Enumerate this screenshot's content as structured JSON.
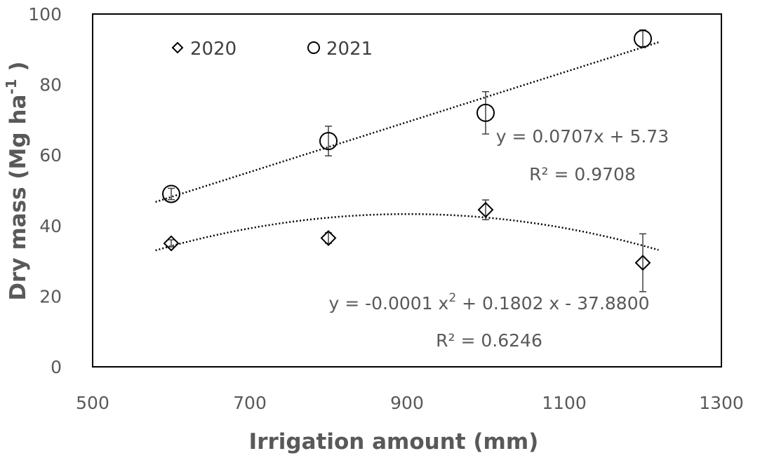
{
  "chart_data": {
    "type": "scatter",
    "xlabel": "Irrigation amount (mm)",
    "ylabel_main": "Dry mass (Mg ha",
    "ylabel_sup": "-1",
    "ylabel_end": " )",
    "xlim": [
      500,
      1300
    ],
    "ylim": [
      0,
      100
    ],
    "xticks": [
      "500",
      "700",
      "900",
      "1100",
      "1300"
    ],
    "yticks": [
      "0",
      "20",
      "40",
      "60",
      "80",
      "100"
    ],
    "grid": false,
    "legend_position": "top-left",
    "series": [
      {
        "name": "2020",
        "marker": "diamond",
        "color": "#000000",
        "x": [
          600,
          800,
          1000,
          1200
        ],
        "y": [
          35.0,
          36.5,
          44.5,
          29.5
        ],
        "error": [
          1.0,
          1.5,
          2.8,
          8.2
        ],
        "trendline": {
          "type": "polynomial",
          "coefficients": [
            -0.0001,
            0.1802,
            -37.88
          ],
          "x_range": [
            580,
            1220
          ],
          "equation_prefix": "y = -0.0001 x",
          "equation_sup": "2",
          "equation_suffix": " + 0.1802 x - 37.8800",
          "r2": "R² = 0.6246"
        }
      },
      {
        "name": "2021",
        "marker": "circle",
        "color": "#000000",
        "x": [
          600,
          800,
          1000,
          1200
        ],
        "y": [
          49.0,
          64.0,
          72.0,
          93.0
        ],
        "error": [
          1.6,
          4.2,
          6.0,
          2.5
        ],
        "trendline": {
          "type": "linear",
          "coefficients": [
            0.0707,
            5.73
          ],
          "x_range": [
            580,
            1220
          ],
          "equation": "y = 0.0707x + 5.73",
          "r2": "R² = 0.9708"
        }
      }
    ]
  }
}
